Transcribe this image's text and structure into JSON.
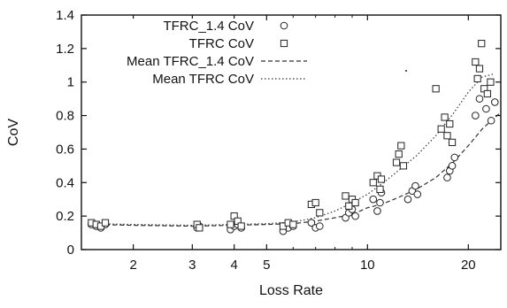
{
  "chart_data": {
    "type": "scatter",
    "xlabel": "Loss Rate",
    "ylabel": "CoV",
    "xscale": "log",
    "xlim": [
      1.4,
      25
    ],
    "ylim": [
      0,
      1.4
    ],
    "xticks": [
      2,
      3,
      4,
      5,
      10,
      20
    ],
    "yticks": [
      0,
      0.2,
      0.4,
      0.6,
      0.8,
      1,
      1.2,
      1.4
    ],
    "ytick_labels": [
      "0",
      "0.2",
      "0.4",
      "0.6",
      "0.8",
      "1",
      "1.2",
      "1.4"
    ],
    "grid": false,
    "legend_position": "top-left",
    "series": [
      {
        "name": "TFRC_1.4 CoV",
        "kind": "scatter",
        "marker": "circle",
        "points": [
          [
            1.5,
            0.15
          ],
          [
            1.55,
            0.14
          ],
          [
            1.6,
            0.13
          ],
          [
            1.65,
            0.15
          ],
          [
            3.1,
            0.13
          ],
          [
            3.15,
            0.14
          ],
          [
            3.9,
            0.12
          ],
          [
            4.0,
            0.14
          ],
          [
            4.1,
            0.15
          ],
          [
            4.2,
            0.13
          ],
          [
            5.6,
            0.11
          ],
          [
            5.8,
            0.13
          ],
          [
            6.0,
            0.14
          ],
          [
            6.8,
            0.16
          ],
          [
            7.0,
            0.13
          ],
          [
            7.2,
            0.14
          ],
          [
            8.6,
            0.19
          ],
          [
            8.8,
            0.22
          ],
          [
            9.0,
            0.24
          ],
          [
            9.2,
            0.2
          ],
          [
            10.4,
            0.3
          ],
          [
            10.7,
            0.23
          ],
          [
            10.9,
            0.28
          ],
          [
            11.0,
            0.34
          ],
          [
            13.2,
            0.3
          ],
          [
            13.6,
            0.35
          ],
          [
            13.9,
            0.38
          ],
          [
            14.1,
            0.33
          ],
          [
            17.3,
            0.43
          ],
          [
            17.6,
            0.47
          ],
          [
            17.9,
            0.5
          ],
          [
            18.2,
            0.55
          ],
          [
            21.0,
            0.8
          ],
          [
            21.6,
            0.9
          ],
          [
            22.6,
            0.84
          ],
          [
            23.4,
            0.77
          ],
          [
            24.0,
            0.88
          ]
        ]
      },
      {
        "name": "TFRC CoV",
        "kind": "scatter",
        "marker": "square",
        "points": [
          [
            1.5,
            0.16
          ],
          [
            1.55,
            0.15
          ],
          [
            1.6,
            0.14
          ],
          [
            1.65,
            0.16
          ],
          [
            3.1,
            0.15
          ],
          [
            3.15,
            0.13
          ],
          [
            3.9,
            0.15
          ],
          [
            4.0,
            0.2
          ],
          [
            4.1,
            0.17
          ],
          [
            4.2,
            0.14
          ],
          [
            5.6,
            0.14
          ],
          [
            5.8,
            0.16
          ],
          [
            6.0,
            0.15
          ],
          [
            6.8,
            0.27
          ],
          [
            7.0,
            0.28
          ],
          [
            7.2,
            0.22
          ],
          [
            8.6,
            0.32
          ],
          [
            8.8,
            0.26
          ],
          [
            9.0,
            0.3
          ],
          [
            9.2,
            0.28
          ],
          [
            10.4,
            0.4
          ],
          [
            10.7,
            0.44
          ],
          [
            10.9,
            0.36
          ],
          [
            11.0,
            0.42
          ],
          [
            12.2,
            0.52
          ],
          [
            12.4,
            0.57
          ],
          [
            12.6,
            0.62
          ],
          [
            12.8,
            0.5
          ],
          [
            16.0,
            0.96
          ],
          [
            16.6,
            0.72
          ],
          [
            17.0,
            0.79
          ],
          [
            17.3,
            0.68
          ],
          [
            17.6,
            0.75
          ],
          [
            17.9,
            0.64
          ],
          [
            21.0,
            1.12
          ],
          [
            21.3,
            1.02
          ],
          [
            21.6,
            1.08
          ],
          [
            21.9,
            1.23
          ],
          [
            22.3,
            0.96
          ],
          [
            22.8,
            0.93
          ],
          [
            23.3,
            1.0
          ]
        ]
      },
      {
        "name": "Mean TFRC_1.4 CoV",
        "kind": "line",
        "style": "dashed",
        "points": [
          [
            1.5,
            0.15
          ],
          [
            2,
            0.145
          ],
          [
            3,
            0.14
          ],
          [
            4,
            0.145
          ],
          [
            5,
            0.15
          ],
          [
            6,
            0.155
          ],
          [
            7,
            0.17
          ],
          [
            8,
            0.19
          ],
          [
            9,
            0.21
          ],
          [
            10,
            0.25
          ],
          [
            11,
            0.27
          ],
          [
            12,
            0.3
          ],
          [
            14,
            0.36
          ],
          [
            16,
            0.43
          ],
          [
            18,
            0.52
          ],
          [
            20,
            0.62
          ],
          [
            22,
            0.72
          ],
          [
            25,
            0.82
          ]
        ]
      },
      {
        "name": "Mean TFRC CoV",
        "kind": "line",
        "style": "dotted",
        "points": [
          [
            1.5,
            0.155
          ],
          [
            2,
            0.15
          ],
          [
            3,
            0.145
          ],
          [
            4,
            0.15
          ],
          [
            5,
            0.155
          ],
          [
            6,
            0.165
          ],
          [
            7,
            0.19
          ],
          [
            8,
            0.23
          ],
          [
            9,
            0.28
          ],
          [
            10,
            0.33
          ],
          [
            11,
            0.39
          ],
          [
            12,
            0.45
          ],
          [
            14,
            0.56
          ],
          [
            16,
            0.68
          ],
          [
            18,
            0.81
          ],
          [
            20,
            0.94
          ],
          [
            22,
            1.03
          ],
          [
            24,
            1.05
          ]
        ]
      }
    ]
  }
}
